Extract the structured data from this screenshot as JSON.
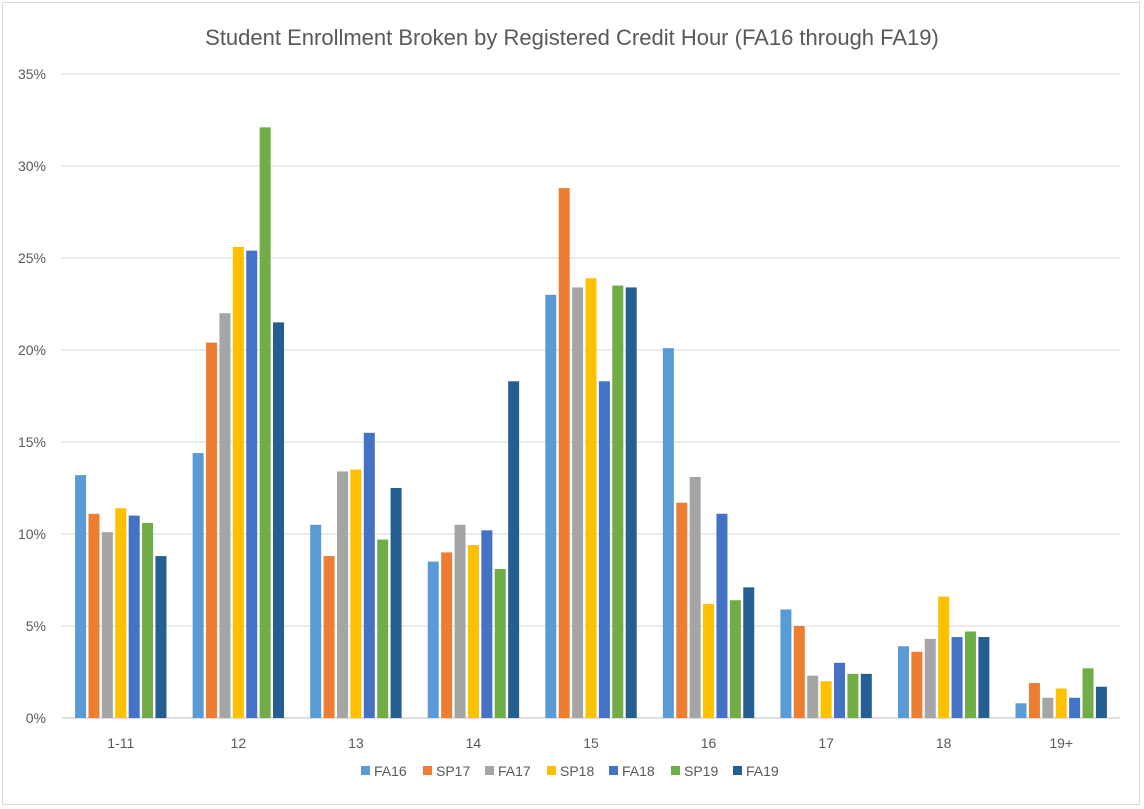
{
  "chart_data": {
    "type": "bar",
    "title": "Student Enrollment Broken by Registered Credit Hour (FA16 through FA19)",
    "xlabel": "",
    "ylabel": "",
    "ylim": [
      0,
      35
    ],
    "yticks": [
      "0%",
      "5%",
      "10%",
      "15%",
      "20%",
      "25%",
      "30%",
      "35%"
    ],
    "categories": [
      "1-11",
      "12",
      "13",
      "14",
      "15",
      "16",
      "17",
      "18",
      "19+"
    ],
    "grid": true,
    "legend": "bottom",
    "series": [
      {
        "name": "FA16",
        "color": "#5b9bd5",
        "values": [
          13.2,
          14.4,
          10.5,
          8.5,
          23.0,
          20.1,
          5.9,
          3.9,
          0.8
        ]
      },
      {
        "name": "SP17",
        "color": "#ed7d31",
        "values": [
          11.1,
          20.4,
          8.8,
          9.0,
          28.8,
          11.7,
          5.0,
          3.6,
          1.9
        ]
      },
      {
        "name": "FA17",
        "color": "#a5a5a5",
        "values": [
          10.1,
          22.0,
          13.4,
          10.5,
          23.4,
          13.1,
          2.3,
          4.3,
          1.1
        ]
      },
      {
        "name": "SP18",
        "color": "#ffc000",
        "values": [
          11.4,
          25.6,
          13.5,
          9.4,
          23.9,
          6.2,
          2.0,
          6.6,
          1.6
        ]
      },
      {
        "name": "FA18",
        "color": "#4472c4",
        "values": [
          11.0,
          25.4,
          15.5,
          10.2,
          18.3,
          11.1,
          3.0,
          4.4,
          1.1
        ]
      },
      {
        "name": "SP19",
        "color": "#70ad47",
        "values": [
          10.6,
          32.1,
          9.7,
          8.1,
          23.5,
          6.4,
          2.4,
          4.7,
          2.7
        ]
      },
      {
        "name": "FA19",
        "color": "#255e91",
        "values": [
          8.8,
          21.5,
          12.5,
          18.3,
          23.4,
          7.1,
          2.4,
          4.4,
          1.7
        ]
      }
    ]
  }
}
